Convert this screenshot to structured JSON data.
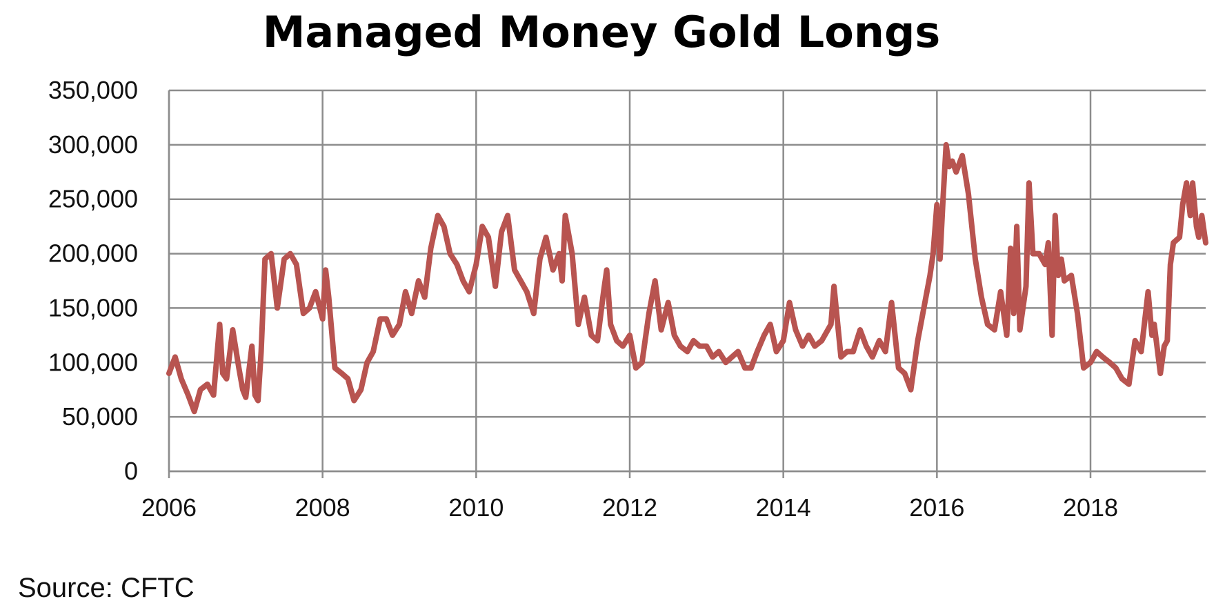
{
  "chart_data": {
    "type": "line",
    "title": "Managed Money Gold Longs",
    "xlabel": "",
    "ylabel": "",
    "xlim": [
      2006,
      2019.5
    ],
    "ylim": [
      0,
      350000
    ],
    "x_ticks": [
      "2006",
      "2008",
      "2010",
      "2012",
      "2014",
      "2016",
      "2018"
    ],
    "y_ticks": [
      "0",
      "50,000",
      "100,000",
      "150,000",
      "200,000",
      "250,000",
      "300,000",
      "350,000"
    ],
    "grid": true,
    "legend": "none",
    "line_color": "#b85450",
    "series": [
      {
        "x": [
          2006.0,
          2006.08,
          2006.16,
          2006.25,
          2006.33,
          2006.41,
          2006.5,
          2006.58,
          2006.66,
          2006.7,
          2006.75,
          2006.83,
          2006.91,
          2006.96,
          2007.0,
          2007.08,
          2007.12,
          2007.16,
          2007.2,
          2007.25,
          2007.33,
          2007.41,
          2007.5,
          2007.58,
          2007.66,
          2007.75,
          2007.83,
          2007.91,
          2008.0,
          2008.04,
          2008.08,
          2008.16,
          2008.25,
          2008.33,
          2008.41,
          2008.5,
          2008.58,
          2008.66,
          2008.75,
          2008.83,
          2008.91,
          2009.0,
          2009.08,
          2009.16,
          2009.25,
          2009.33,
          2009.41,
          2009.5,
          2009.58,
          2009.66,
          2009.75,
          2009.83,
          2009.91,
          2010.0,
          2010.08,
          2010.16,
          2010.25,
          2010.33,
          2010.41,
          2010.5,
          2010.58,
          2010.66,
          2010.75,
          2010.83,
          2010.91,
          2011.0,
          2011.08,
          2011.12,
          2011.16,
          2011.25,
          2011.33,
          2011.41,
          2011.5,
          2011.58,
          2011.66,
          2011.7,
          2011.75,
          2011.83,
          2011.91,
          2012.0,
          2012.08,
          2012.16,
          2012.25,
          2012.33,
          2012.41,
          2012.5,
          2012.58,
          2012.66,
          2012.75,
          2012.83,
          2012.91,
          2013.0,
          2013.08,
          2013.16,
          2013.25,
          2013.33,
          2013.41,
          2013.5,
          2013.58,
          2013.66,
          2013.75,
          2013.83,
          2013.91,
          2014.0,
          2014.08,
          2014.16,
          2014.25,
          2014.33,
          2014.41,
          2014.5,
          2014.58,
          2014.62,
          2014.66,
          2014.75,
          2014.83,
          2014.91,
          2015.0,
          2015.08,
          2015.16,
          2015.25,
          2015.33,
          2015.41,
          2015.5,
          2015.58,
          2015.66,
          2015.75,
          2015.83,
          2015.91,
          2015.95,
          2016.0,
          2016.04,
          2016.08,
          2016.12,
          2016.16,
          2016.2,
          2016.25,
          2016.33,
          2016.41,
          2016.5,
          2016.58,
          2016.66,
          2016.75,
          2016.83,
          2016.91,
          2016.96,
          2017.0,
          2017.04,
          2017.08,
          2017.16,
          2017.2,
          2017.25,
          2017.33,
          2017.41,
          2017.45,
          2017.5,
          2017.54,
          2017.58,
          2017.62,
          2017.66,
          2017.75,
          2017.83,
          2017.91,
          2018.0,
          2018.08,
          2018.16,
          2018.25,
          2018.33,
          2018.41,
          2018.5,
          2018.58,
          2018.66,
          2018.75,
          2018.8,
          2018.83,
          2018.91,
          2018.96,
          2019.0,
          2019.04,
          2019.08,
          2019.16,
          2019.2,
          2019.25,
          2019.3,
          2019.33,
          2019.38,
          2019.41,
          2019.45,
          2019.5
        ],
        "y": [
          90000,
          105000,
          85000,
          70000,
          55000,
          75000,
          80000,
          70000,
          135000,
          90000,
          85000,
          130000,
          95000,
          75000,
          68000,
          115000,
          70000,
          65000,
          110000,
          195000,
          200000,
          150000,
          195000,
          200000,
          190000,
          145000,
          150000,
          165000,
          140000,
          185000,
          160000,
          95000,
          90000,
          85000,
          65000,
          75000,
          100000,
          110000,
          140000,
          140000,
          125000,
          135000,
          165000,
          145000,
          175000,
          160000,
          205000,
          235000,
          225000,
          200000,
          190000,
          175000,
          165000,
          190000,
          225000,
          215000,
          170000,
          220000,
          235000,
          185000,
          175000,
          165000,
          145000,
          195000,
          215000,
          185000,
          200000,
          175000,
          235000,
          200000,
          135000,
          160000,
          125000,
          120000,
          165000,
          185000,
          135000,
          120000,
          115000,
          125000,
          95000,
          100000,
          145000,
          175000,
          130000,
          155000,
          125000,
          115000,
          110000,
          120000,
          115000,
          115000,
          105000,
          110000,
          100000,
          105000,
          110000,
          95000,
          95000,
          110000,
          125000,
          135000,
          110000,
          120000,
          155000,
          130000,
          115000,
          125000,
          115000,
          120000,
          130000,
          135000,
          170000,
          105000,
          110000,
          110000,
          130000,
          115000,
          105000,
          120000,
          110000,
          155000,
          95000,
          90000,
          75000,
          120000,
          150000,
          180000,
          200000,
          245000,
          195000,
          250000,
          300000,
          280000,
          285000,
          275000,
          290000,
          255000,
          195000,
          160000,
          135000,
          130000,
          165000,
          125000,
          205000,
          145000,
          225000,
          130000,
          170000,
          265000,
          200000,
          200000,
          190000,
          210000,
          125000,
          235000,
          180000,
          195000,
          175000,
          180000,
          145000,
          95000,
          100000,
          110000,
          105000,
          100000,
          95000,
          85000,
          80000,
          120000,
          110000,
          165000,
          125000,
          135000,
          90000,
          115000,
          120000,
          190000,
          210000,
          215000,
          245000,
          265000,
          235000,
          265000,
          225000,
          215000,
          235000,
          210000
        ]
      }
    ]
  },
  "source_label": "Source: CFTC"
}
